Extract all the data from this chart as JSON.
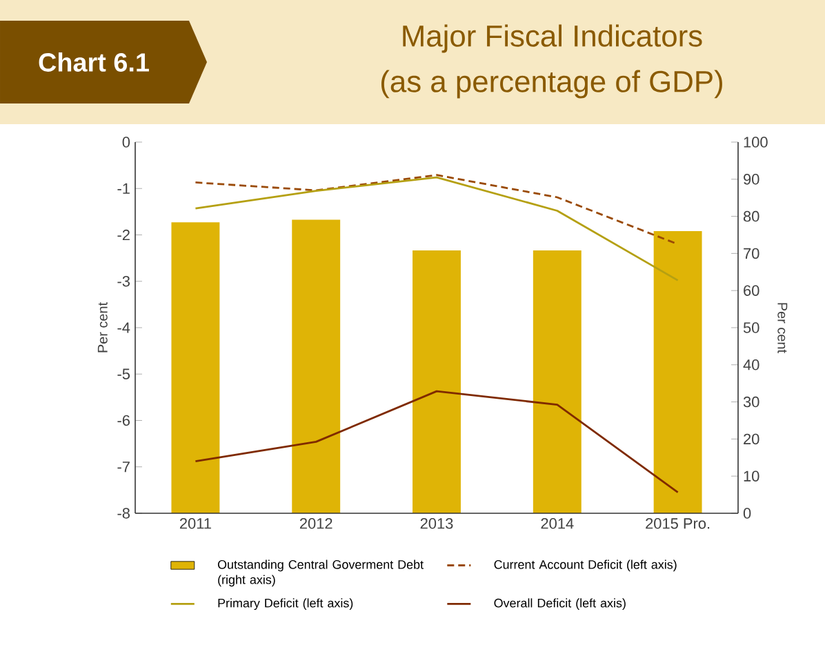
{
  "chart_data": {
    "type": "bar",
    "title": "Major Fiscal Indicators",
    "subtitle": "(as a percentage of GDP)",
    "annotations": [
      "Chart 6.1"
    ],
    "categories": [
      "2011",
      "2012",
      "2013",
      "2014",
      "2015 Pro."
    ],
    "series": [
      {
        "name": "Outstanding Central Goverment Debt (right axis)",
        "axis": "y2",
        "color": "#dfb406",
        "values": [
          78.4,
          79.1,
          70.8,
          70.8,
          76.0
        ]
      },
      {
        "name": "Current Account Deficit (left axis)",
        "type": "line",
        "line_style": "dashed",
        "color": "#9a4a06",
        "values": [
          -0.87,
          -1.04,
          -0.71,
          -1.19,
          -2.2
        ]
      },
      {
        "name": "Primary Deficit (left axis)",
        "type": "line",
        "line_style": "solid",
        "color": "#b5a012",
        "values": [
          -1.43,
          -1.05,
          -0.76,
          -1.48,
          -2.98
        ]
      },
      {
        "name": "Overall Deficit (left axis)",
        "type": "line",
        "line_style": "solid",
        "color": "#7f2a00",
        "values": [
          -6.88,
          -6.46,
          -5.37,
          -5.66,
          -7.55
        ]
      }
    ],
    "ylabel": "Per cent",
    "y2label": "Per cent",
    "ylim": [
      -8,
      0
    ],
    "yticks": [
      -8,
      -7,
      -6,
      -5,
      -4,
      -3,
      -2,
      -1,
      0
    ],
    "y2lim": [
      0,
      100
    ],
    "y2ticks": [
      0,
      10,
      20,
      30,
      40,
      50,
      60,
      70,
      80,
      90,
      100
    ],
    "legend": "bottom"
  }
}
